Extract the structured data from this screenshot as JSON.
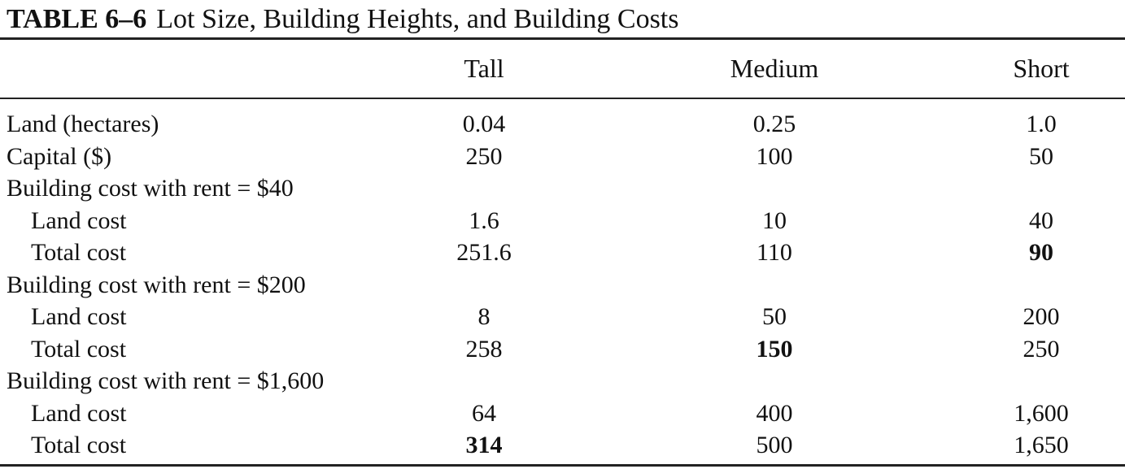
{
  "caption": {
    "label": "TABLE 6–6",
    "title": "Lot Size, Building Heights, and Building Costs"
  },
  "columns": [
    "Tall",
    "Medium",
    "Short"
  ],
  "rows": [
    {
      "label": "Land (hectares)",
      "indent": false,
      "values": [
        "0.04",
        "0.25",
        "1.0"
      ],
      "bold": [
        false,
        false,
        false
      ]
    },
    {
      "label": "Capital ($)",
      "indent": false,
      "values": [
        "250",
        "100",
        "50"
      ],
      "bold": [
        false,
        false,
        false
      ]
    },
    {
      "label": "Building cost with rent = $40",
      "indent": false,
      "values": [
        "",
        "",
        ""
      ],
      "bold": [
        false,
        false,
        false
      ]
    },
    {
      "label": "Land cost",
      "indent": true,
      "values": [
        "1.6",
        "10",
        "40"
      ],
      "bold": [
        false,
        false,
        false
      ]
    },
    {
      "label": "Total cost",
      "indent": true,
      "values": [
        "251.6",
        "110",
        "90"
      ],
      "bold": [
        false,
        false,
        true
      ]
    },
    {
      "label": "Building cost with rent = $200",
      "indent": false,
      "values": [
        "",
        "",
        ""
      ],
      "bold": [
        false,
        false,
        false
      ]
    },
    {
      "label": "Land cost",
      "indent": true,
      "values": [
        "8",
        "50",
        "200"
      ],
      "bold": [
        false,
        false,
        false
      ]
    },
    {
      "label": "Total cost",
      "indent": true,
      "values": [
        "258",
        "150",
        "250"
      ],
      "bold": [
        false,
        true,
        false
      ]
    },
    {
      "label": "Building cost with rent = $1,600",
      "indent": false,
      "values": [
        "",
        "",
        ""
      ],
      "bold": [
        false,
        false,
        false
      ]
    },
    {
      "label": "Land cost",
      "indent": true,
      "values": [
        "64",
        "400",
        "1,600"
      ],
      "bold": [
        false,
        false,
        false
      ]
    },
    {
      "label": "Total cost",
      "indent": true,
      "values": [
        "314",
        "500",
        "1,650"
      ],
      "bold": [
        true,
        false,
        false
      ]
    }
  ]
}
